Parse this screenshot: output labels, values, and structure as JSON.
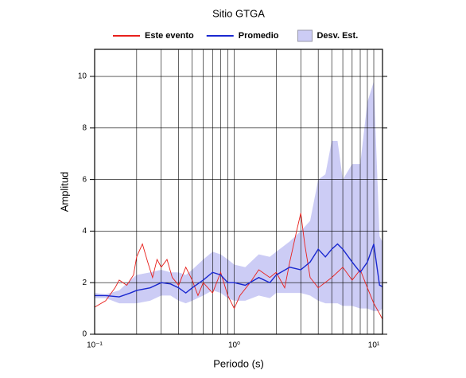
{
  "chart_data": {
    "type": "line",
    "title": "Sitio GTGA",
    "x_label": "Periodo (s)",
    "y_label": "Amplitud",
    "xscale": "log",
    "grid": true,
    "legend": "top",
    "xlim": [
      0.1,
      11.55
    ],
    "ylim": [
      0,
      11.05
    ],
    "xticks": [
      {
        "value": 0.1,
        "label": "10⁻¹"
      },
      {
        "value": 1,
        "label": "10⁰"
      },
      {
        "value": 10,
        "label": "10¹"
      }
    ],
    "xminor": [
      0.2,
      0.3,
      0.4,
      0.5,
      0.6,
      0.7,
      0.8,
      0.9,
      2,
      3,
      4,
      5,
      6,
      7,
      8,
      9
    ],
    "yticks": [
      0,
      2,
      4,
      6,
      8,
      10
    ],
    "band": {
      "name": "Desv. Est.",
      "color": "#ccccf5",
      "x": [
        0.1,
        0.12,
        0.15,
        0.18,
        0.2,
        0.25,
        0.3,
        0.35,
        0.4,
        0.45,
        0.5,
        0.6,
        0.7,
        0.8,
        0.9,
        1.0,
        1.2,
        1.5,
        1.8,
        2.0,
        2.5,
        3.0,
        3.5,
        4.0,
        4.5,
        5.0,
        5.5,
        6.0,
        7.0,
        8.0,
        9.0,
        10.0,
        11.0,
        11.5
      ],
      "upper": [
        1.6,
        1.55,
        1.7,
        2.1,
        2.3,
        2.4,
        2.5,
        2.4,
        2.4,
        2.3,
        2.5,
        2.9,
        3.2,
        3.1,
        2.9,
        2.7,
        2.6,
        3.1,
        3.0,
        3.2,
        3.6,
        4.0,
        4.4,
        6.0,
        6.2,
        7.5,
        7.5,
        6.0,
        6.6,
        6.6,
        9.0,
        9.8,
        3.8,
        3.6
      ],
      "lower": [
        1.4,
        1.4,
        1.2,
        1.2,
        1.2,
        1.3,
        1.5,
        1.5,
        1.3,
        1.2,
        1.3,
        1.5,
        1.7,
        1.6,
        1.4,
        1.3,
        1.3,
        1.5,
        1.4,
        1.6,
        1.6,
        1.6,
        1.5,
        1.3,
        1.2,
        1.2,
        1.2,
        1.1,
        1.1,
        1.0,
        1.0,
        0.9,
        0.9,
        1.0
      ]
    },
    "series": [
      {
        "name": "Este evento",
        "color": "#e8201c",
        "x": [
          0.1,
          0.12,
          0.14,
          0.15,
          0.17,
          0.19,
          0.2,
          0.22,
          0.24,
          0.26,
          0.28,
          0.3,
          0.33,
          0.36,
          0.4,
          0.45,
          0.5,
          0.55,
          0.6,
          0.7,
          0.8,
          0.9,
          1.0,
          1.1,
          1.3,
          1.5,
          1.8,
          2.0,
          2.3,
          2.5,
          2.8,
          3.0,
          3.2,
          3.5,
          4.0,
          5.0,
          6.0,
          7.0,
          8.0,
          9.0,
          10.0,
          11.0,
          11.5
        ],
        "values": [
          1.05,
          1.3,
          1.8,
          2.1,
          1.9,
          2.3,
          3.0,
          3.5,
          2.8,
          2.2,
          2.9,
          2.6,
          2.9,
          2.2,
          1.9,
          2.6,
          2.1,
          1.5,
          2.0,
          1.6,
          2.4,
          1.5,
          1.0,
          1.5,
          2.0,
          2.5,
          2.2,
          2.4,
          1.8,
          2.8,
          4.0,
          4.7,
          3.5,
          2.2,
          1.8,
          2.2,
          2.6,
          2.1,
          2.5,
          1.8,
          1.2,
          0.8,
          0.6
        ]
      },
      {
        "name": "Promedio",
        "color": "#1a28d0",
        "x": [
          0.1,
          0.12,
          0.15,
          0.18,
          0.2,
          0.25,
          0.3,
          0.35,
          0.4,
          0.45,
          0.5,
          0.6,
          0.7,
          0.8,
          0.9,
          1.0,
          1.2,
          1.5,
          1.8,
          2.0,
          2.5,
          3.0,
          3.5,
          4.0,
          4.5,
          5.0,
          5.5,
          6.0,
          7.0,
          8.0,
          9.0,
          10.0,
          11.0,
          11.5
        ],
        "values": [
          1.5,
          1.5,
          1.45,
          1.6,
          1.7,
          1.8,
          2.0,
          1.95,
          1.8,
          1.6,
          1.8,
          2.1,
          2.4,
          2.3,
          2.0,
          2.0,
          1.9,
          2.2,
          2.0,
          2.3,
          2.6,
          2.5,
          2.8,
          3.3,
          3.0,
          3.3,
          3.5,
          3.3,
          2.8,
          2.4,
          2.8,
          3.5,
          1.9,
          1.85
        ]
      }
    ]
  }
}
